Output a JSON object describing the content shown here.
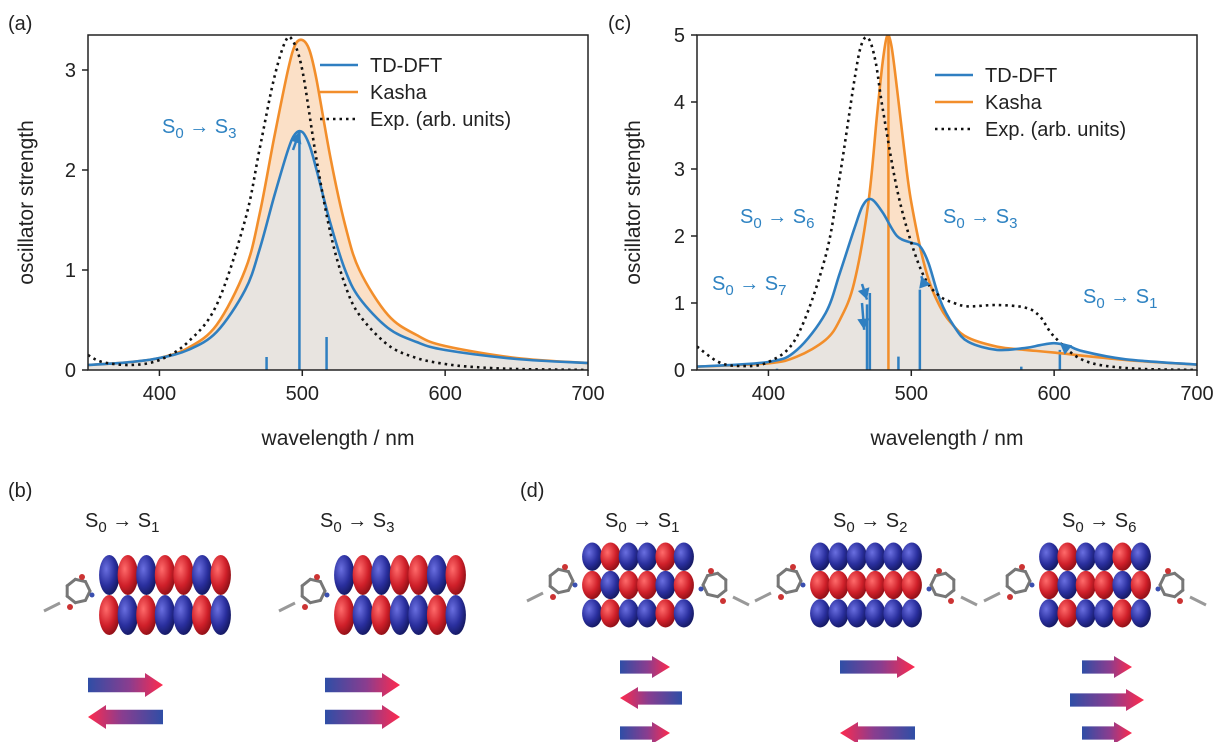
{
  "colors": {
    "tddft": "#2f7fc1",
    "kasha": "#f28e2b",
    "exp": "#111111",
    "fill_tddft": "#e8e4e0",
    "fill_kasha": "#fbe0c7",
    "orbital_red": "#d0202a",
    "orbital_blue": "#2a2f9e",
    "arrow_start": "#2f4ea6",
    "arrow_end": "#ff2a4d"
  },
  "panels": {
    "a": "(a)",
    "b": "(b)",
    "c": "(c)",
    "d": "(d)"
  },
  "chart_data": [
    {
      "panel": "(a)",
      "type": "line",
      "xlabel": "wavelength / nm",
      "ylabel": "oscillator strength",
      "xlim": [
        350,
        700
      ],
      "ylim": [
        0,
        3.35
      ],
      "xticks": [
        400,
        500,
        600,
        700
      ],
      "yticks": [
        0,
        1,
        2,
        3
      ],
      "legend_position": "top-right",
      "legend": [
        "TD-DFT",
        "Kasha",
        "Exp. (arb. units)"
      ],
      "series": [
        {
          "name": "TD-DFT",
          "x": [
            350,
            380,
            400,
            420,
            440,
            460,
            470,
            480,
            490,
            495,
            500,
            505,
            510,
            520,
            530,
            540,
            560,
            580,
            600,
            650,
            700
          ],
          "y": [
            0.05,
            0.08,
            0.12,
            0.2,
            0.38,
            0.8,
            1.2,
            1.72,
            2.2,
            2.36,
            2.38,
            2.25,
            2.0,
            1.45,
            1.0,
            0.72,
            0.42,
            0.28,
            0.2,
            0.11,
            0.07
          ]
        },
        {
          "name": "Kasha",
          "x": [
            350,
            380,
            400,
            420,
            440,
            460,
            470,
            480,
            490,
            495,
            500,
            505,
            510,
            520,
            530,
            540,
            560,
            580,
            600,
            650,
            700
          ],
          "y": [
            0.05,
            0.08,
            0.12,
            0.22,
            0.45,
            1.0,
            1.55,
            2.3,
            3.0,
            3.25,
            3.3,
            3.2,
            2.9,
            2.1,
            1.45,
            1.0,
            0.55,
            0.35,
            0.24,
            0.12,
            0.07
          ]
        },
        {
          "name": "Exp. (arb. units)",
          "x": [
            350,
            360,
            380,
            400,
            420,
            440,
            460,
            470,
            480,
            488,
            493,
            500,
            510,
            520,
            530,
            540,
            560,
            580,
            600,
            620,
            650,
            700
          ],
          "y": [
            0.15,
            0.08,
            0.05,
            0.1,
            0.28,
            0.65,
            1.5,
            2.2,
            2.9,
            3.28,
            3.3,
            3.0,
            2.1,
            1.35,
            0.85,
            0.55,
            0.25,
            0.12,
            0.06,
            0.03,
            0.01,
            0.0
          ]
        }
      ],
      "sticks": [
        {
          "x": 475,
          "y": 0.13
        },
        {
          "x": 498,
          "y": 2.38
        },
        {
          "x": 517,
          "y": 0.33
        }
      ],
      "annotations": [
        {
          "label": "S<sub>0</sub> → S<sub>3</sub>",
          "x": 498,
          "y": 2.38
        }
      ]
    },
    {
      "panel": "(c)",
      "type": "line",
      "xlabel": "wavelength / nm",
      "ylabel": "oscillator strength",
      "xlim": [
        350,
        700
      ],
      "ylim": [
        0,
        5
      ],
      "xticks": [
        400,
        500,
        600,
        700
      ],
      "yticks": [
        0,
        1,
        2,
        3,
        4,
        5
      ],
      "legend_position": "top-right",
      "legend": [
        "TD-DFT",
        "Kasha",
        "Exp. (arb. units)"
      ],
      "series": [
        {
          "name": "TD-DFT",
          "x": [
            350,
            400,
            420,
            440,
            450,
            460,
            466,
            472,
            480,
            490,
            500,
            506,
            512,
            520,
            530,
            540,
            560,
            580,
            590,
            600,
            610,
            620,
            650,
            700
          ],
          "y": [
            0.05,
            0.12,
            0.3,
            0.85,
            1.45,
            2.1,
            2.45,
            2.55,
            2.35,
            2.0,
            1.9,
            1.85,
            1.6,
            1.05,
            0.65,
            0.42,
            0.3,
            0.33,
            0.37,
            0.4,
            0.36,
            0.28,
            0.16,
            0.08
          ]
        },
        {
          "name": "Kasha",
          "x": [
            350,
            400,
            420,
            440,
            450,
            460,
            470,
            476,
            480,
            483,
            486,
            490,
            495,
            500,
            510,
            520,
            530,
            540,
            560,
            580,
            600,
            650,
            700
          ],
          "y": [
            0.05,
            0.1,
            0.2,
            0.45,
            0.75,
            1.3,
            2.5,
            3.8,
            4.6,
            4.98,
            4.85,
            4.2,
            3.3,
            2.5,
            1.5,
            0.95,
            0.65,
            0.48,
            0.35,
            0.3,
            0.26,
            0.15,
            0.08
          ]
        },
        {
          "name": "Exp. (arb. units)",
          "x": [
            350,
            365,
            380,
            400,
            420,
            440,
            450,
            460,
            465,
            470,
            475,
            480,
            490,
            500,
            510,
            520,
            530,
            540,
            560,
            580,
            590,
            600,
            620,
            650,
            700
          ],
          "y": [
            0.35,
            0.12,
            0.06,
            0.12,
            0.5,
            1.7,
            2.9,
            4.3,
            4.85,
            4.95,
            4.6,
            3.9,
            2.7,
            1.9,
            1.35,
            1.1,
            1.0,
            0.95,
            0.97,
            0.93,
            0.8,
            0.5,
            0.15,
            0.03,
            0.0
          ]
        }
      ],
      "sticks": [
        {
          "x": 406,
          "y": 0.02
        },
        {
          "x": 469,
          "y": 0.98
        },
        {
          "x": 471,
          "y": 1.15
        },
        {
          "x": 484,
          "y": 4.98
        },
        {
          "x": 491,
          "y": 0.2
        },
        {
          "x": 506,
          "y": 1.2
        },
        {
          "x": 577,
          "y": 0.05
        },
        {
          "x": 604,
          "y": 0.3
        }
      ],
      "annotations": [
        {
          "label": "S<sub>0</sub> → S<sub>6</sub>",
          "x": 469,
          "y": 1.05
        },
        {
          "label": "S<sub>0</sub> → S<sub>7</sub>",
          "x": 467,
          "y": 0.6
        },
        {
          "label": "S<sub>0</sub> → S<sub>3</sub>",
          "x": 507,
          "y": 1.4
        },
        {
          "label": "S<sub>0</sub> → S<sub>1</sub>",
          "x": 604,
          "y": 0.4
        }
      ]
    }
  ],
  "panel_b": {
    "transitions": [
      "S<sub>0</sub> → S<sub>1</sub>",
      "S<sub>0</sub> → S<sub>3</sub>"
    ],
    "dipole_arrows": [
      [
        "right",
        "left"
      ],
      [
        "right",
        "right"
      ]
    ]
  },
  "panel_d": {
    "transitions": [
      "S<sub>0</sub> → S<sub>1</sub>",
      "S<sub>0</sub> → S<sub>2</sub>",
      "S<sub>0</sub> → S<sub>6</sub>"
    ],
    "dipole_arrows": [
      [
        "right",
        "left",
        "right"
      ],
      [
        "right",
        "left"
      ],
      [
        "right",
        "right",
        "right"
      ]
    ]
  }
}
